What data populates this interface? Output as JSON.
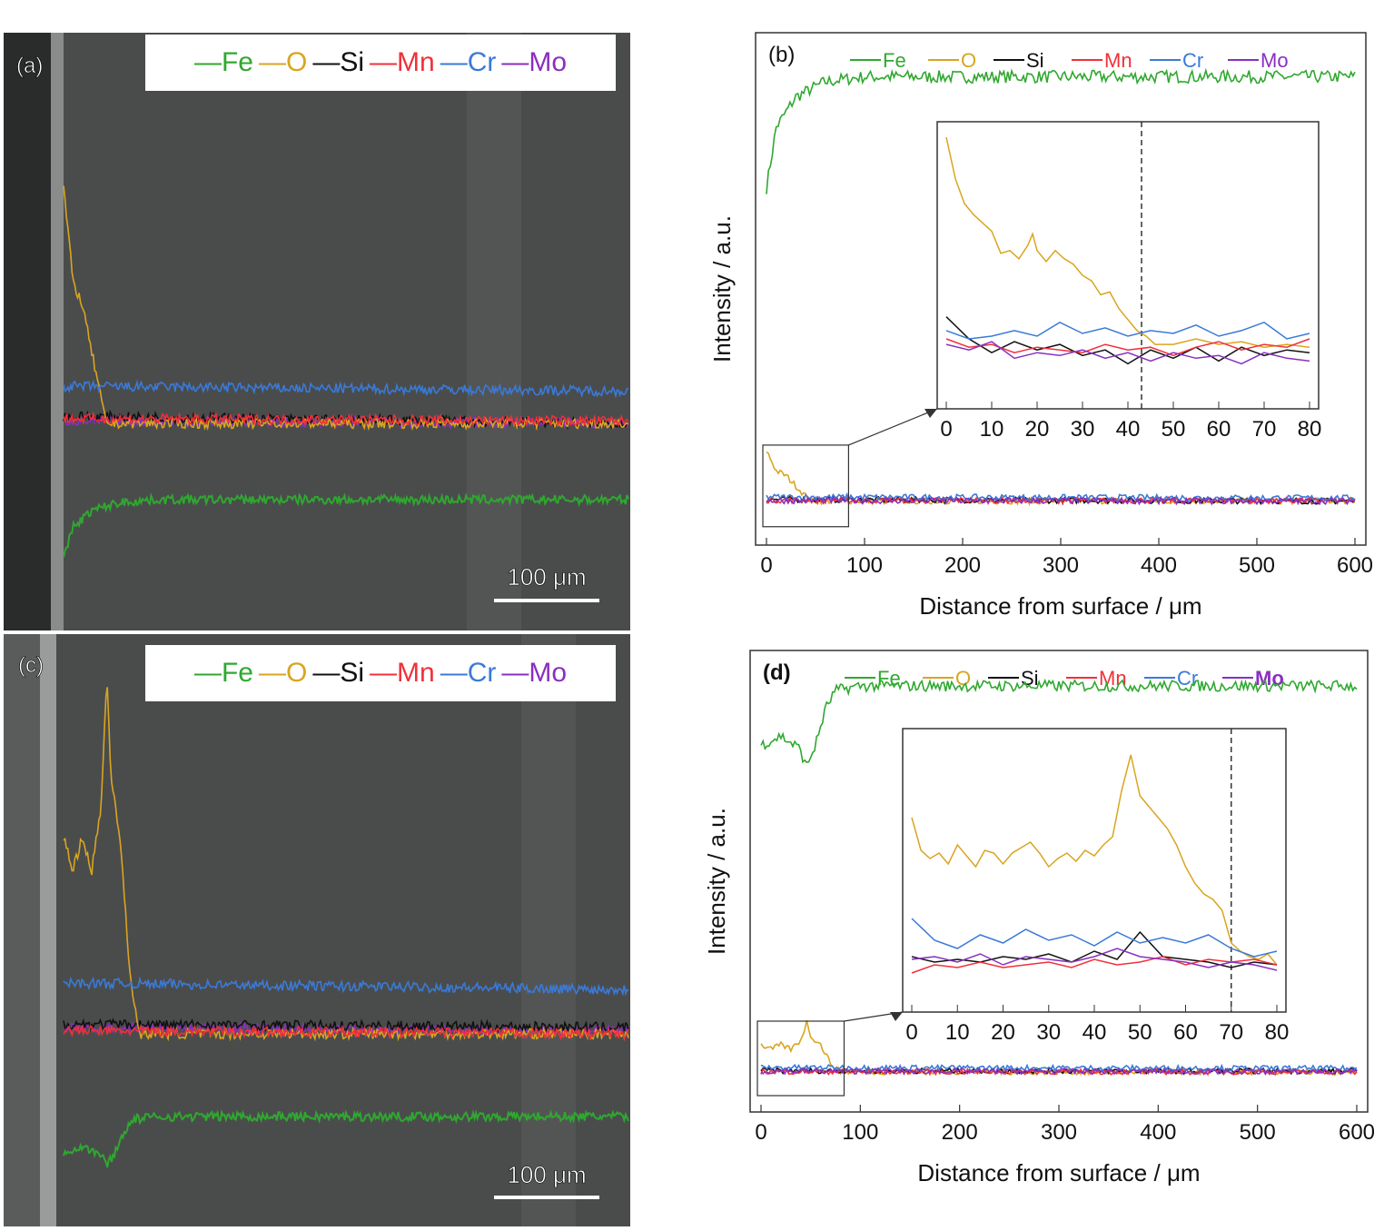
{
  "colors": {
    "Fe": "#2fa82f",
    "O": "#d9a520",
    "Si": "#111111",
    "Mn": "#f0303a",
    "Cr": "#3a7ad8",
    "Mo": "#8a2fc0"
  },
  "legend_elements": [
    "Fe",
    "O",
    "Si",
    "Mn",
    "Cr",
    "Mo"
  ],
  "panels": {
    "a": {
      "label": "(a)",
      "scalebar": "100 μm"
    },
    "b": {
      "label": "(b)"
    },
    "c": {
      "label": "(c)",
      "scalebar": "100 μm"
    },
    "d": {
      "label": "(d)"
    }
  },
  "chart_data": [
    {
      "panel": "b",
      "type": "line",
      "xlabel": "Distance from surface / μm",
      "ylabel": "Intensity / a.u.",
      "xlim": [
        0,
        600
      ],
      "xticks": [
        0,
        100,
        200,
        300,
        400,
        500,
        600
      ],
      "series": [
        {
          "name": "Fe",
          "x": [
            0,
            10,
            30,
            60,
            100,
            600
          ],
          "y": [
            0.7,
            0.82,
            0.88,
            0.91,
            0.92,
            0.92
          ]
        },
        {
          "name": "O",
          "x": [
            0,
            10,
            20,
            30,
            40,
            45,
            600
          ],
          "y": [
            0.18,
            0.14,
            0.13,
            0.11,
            0.09,
            0.08,
            0.08
          ]
        },
        {
          "name": "Si",
          "x": [
            0,
            600
          ],
          "y": [
            0.083,
            0.08
          ]
        },
        {
          "name": "Mn",
          "x": [
            0,
            600
          ],
          "y": [
            0.082,
            0.081
          ]
        },
        {
          "name": "Cr",
          "x": [
            0,
            600
          ],
          "y": [
            0.088,
            0.086
          ]
        },
        {
          "name": "Mo",
          "x": [
            0,
            600
          ],
          "y": [
            0.081,
            0.08
          ]
        }
      ],
      "inset": {
        "xlim": [
          0,
          80
        ],
        "xticks": [
          0,
          10,
          20,
          30,
          40,
          50,
          60,
          70,
          80
        ],
        "marker_x": 43,
        "series": [
          {
            "name": "O",
            "x": [
              0,
              2,
              4,
              6,
              8,
              10,
              12,
              14,
              16,
              18,
              19,
              20,
              22,
              24,
              26,
              28,
              30,
              32,
              34,
              36,
              38,
              40,
              42,
              44,
              46,
              50,
              55,
              60,
              65,
              70,
              75,
              80
            ],
            "y": [
              0.97,
              0.82,
              0.73,
              0.69,
              0.66,
              0.63,
              0.55,
              0.56,
              0.53,
              0.58,
              0.62,
              0.56,
              0.52,
              0.56,
              0.53,
              0.51,
              0.47,
              0.45,
              0.4,
              0.41,
              0.35,
              0.31,
              0.27,
              0.25,
              0.22,
              0.22,
              0.24,
              0.22,
              0.23,
              0.21,
              0.22,
              0.21
            ]
          },
          {
            "name": "Si",
            "x": [
              0,
              5,
              10,
              15,
              20,
              25,
              30,
              35,
              40,
              45,
              50,
              55,
              60,
              65,
              70,
              75,
              80
            ],
            "y": [
              0.32,
              0.24,
              0.19,
              0.23,
              0.2,
              0.22,
              0.18,
              0.2,
              0.15,
              0.2,
              0.17,
              0.21,
              0.16,
              0.21,
              0.18,
              0.2,
              0.19
            ]
          },
          {
            "name": "Mn",
            "x": [
              0,
              5,
              10,
              15,
              20,
              25,
              30,
              35,
              40,
              45,
              50,
              55,
              60,
              65,
              70,
              75,
              80
            ],
            "y": [
              0.24,
              0.21,
              0.22,
              0.19,
              0.21,
              0.2,
              0.19,
              0.22,
              0.2,
              0.21,
              0.18,
              0.21,
              0.23,
              0.2,
              0.22,
              0.21,
              0.24
            ]
          },
          {
            "name": "Cr",
            "x": [
              0,
              5,
              10,
              15,
              20,
              25,
              30,
              35,
              40,
              45,
              50,
              55,
              60,
              65,
              70,
              75,
              80
            ],
            "y": [
              0.27,
              0.24,
              0.25,
              0.27,
              0.25,
              0.3,
              0.26,
              0.28,
              0.25,
              0.27,
              0.26,
              0.29,
              0.25,
              0.27,
              0.3,
              0.24,
              0.26
            ]
          },
          {
            "name": "Mo",
            "x": [
              0,
              5,
              10,
              15,
              20,
              25,
              30,
              35,
              40,
              45,
              50,
              55,
              60,
              65,
              70,
              75,
              80
            ],
            "y": [
              0.22,
              0.2,
              0.23,
              0.17,
              0.19,
              0.18,
              0.2,
              0.17,
              0.19,
              0.16,
              0.19,
              0.17,
              0.18,
              0.15,
              0.19,
              0.17,
              0.16
            ]
          }
        ]
      }
    },
    {
      "panel": "d",
      "type": "line",
      "xlabel": "Distance from surface / μm",
      "ylabel": "Intensity / a.u.",
      "xlim": [
        0,
        600
      ],
      "xticks": [
        0,
        100,
        200,
        300,
        400,
        500,
        600
      ],
      "series": [
        {
          "name": "Fe",
          "x": [
            0,
            20,
            40,
            45,
            55,
            65,
            75,
            100,
            600
          ],
          "y": [
            0.8,
            0.82,
            0.79,
            0.75,
            0.8,
            0.88,
            0.92,
            0.93,
            0.93
          ]
        },
        {
          "name": "O",
          "x": [
            0,
            10,
            20,
            30,
            40,
            46,
            50,
            60,
            70,
            80,
            600
          ],
          "y": [
            0.14,
            0.13,
            0.14,
            0.13,
            0.15,
            0.19,
            0.16,
            0.14,
            0.1,
            0.08,
            0.08
          ]
        },
        {
          "name": "Si",
          "x": [
            0,
            600
          ],
          "y": [
            0.083,
            0.082
          ]
        },
        {
          "name": "Mn",
          "x": [
            0,
            600
          ],
          "y": [
            0.081,
            0.08
          ]
        },
        {
          "name": "Cr",
          "x": [
            0,
            600
          ],
          "y": [
            0.09,
            0.088
          ]
        },
        {
          "name": "Mo",
          "x": [
            0,
            600
          ],
          "y": [
            0.082,
            0.081
          ]
        }
      ],
      "inset": {
        "xlim": [
          0,
          80
        ],
        "xticks": [
          0,
          10,
          20,
          30,
          40,
          50,
          60,
          70,
          80
        ],
        "marker_x": 70,
        "series": [
          {
            "name": "O",
            "x": [
              0,
              2,
              4,
              6,
              8,
              10,
              12,
              14,
              16,
              18,
              20,
              22,
              24,
              26,
              28,
              30,
              32,
              34,
              36,
              38,
              40,
              42,
              44,
              46,
              48,
              50,
              52,
              54,
              56,
              58,
              60,
              62,
              64,
              66,
              68,
              70,
              72,
              74,
              76,
              78,
              80
            ],
            "y": [
              0.7,
              0.58,
              0.55,
              0.57,
              0.53,
              0.6,
              0.56,
              0.52,
              0.58,
              0.57,
              0.53,
              0.57,
              0.59,
              0.61,
              0.57,
              0.52,
              0.55,
              0.57,
              0.54,
              0.58,
              0.56,
              0.6,
              0.63,
              0.8,
              0.93,
              0.78,
              0.74,
              0.7,
              0.66,
              0.6,
              0.52,
              0.46,
              0.42,
              0.4,
              0.36,
              0.24,
              0.21,
              0.19,
              0.18,
              0.2,
              0.16
            ]
          },
          {
            "name": "Si",
            "x": [
              0,
              5,
              10,
              15,
              20,
              25,
              30,
              35,
              40,
              45,
              50,
              55,
              60,
              65,
              70,
              75,
              80
            ],
            "y": [
              0.19,
              0.17,
              0.18,
              0.17,
              0.19,
              0.18,
              0.2,
              0.17,
              0.21,
              0.18,
              0.28,
              0.19,
              0.18,
              0.17,
              0.15,
              0.17,
              0.16
            ]
          },
          {
            "name": "Mn",
            "x": [
              0,
              5,
              10,
              15,
              20,
              25,
              30,
              35,
              40,
              45,
              50,
              55,
              60,
              65,
              70,
              75,
              80
            ],
            "y": [
              0.13,
              0.16,
              0.15,
              0.17,
              0.15,
              0.16,
              0.17,
              0.15,
              0.18,
              0.16,
              0.17,
              0.19,
              0.16,
              0.18,
              0.17,
              0.18,
              0.16
            ]
          },
          {
            "name": "Cr",
            "x": [
              0,
              5,
              10,
              15,
              20,
              25,
              30,
              35,
              40,
              45,
              50,
              55,
              60,
              65,
              70,
              75,
              80
            ],
            "y": [
              0.33,
              0.25,
              0.22,
              0.27,
              0.24,
              0.29,
              0.25,
              0.27,
              0.23,
              0.28,
              0.24,
              0.26,
              0.24,
              0.27,
              0.22,
              0.19,
              0.21
            ]
          },
          {
            "name": "Mo",
            "x": [
              0,
              5,
              10,
              15,
              20,
              25,
              30,
              35,
              40,
              45,
              50,
              55,
              60,
              65,
              70,
              75,
              80
            ],
            "y": [
              0.18,
              0.19,
              0.17,
              0.2,
              0.16,
              0.19,
              0.18,
              0.17,
              0.19,
              0.22,
              0.19,
              0.18,
              0.17,
              0.15,
              0.17,
              0.16,
              0.14
            ]
          }
        ]
      }
    }
  ]
}
